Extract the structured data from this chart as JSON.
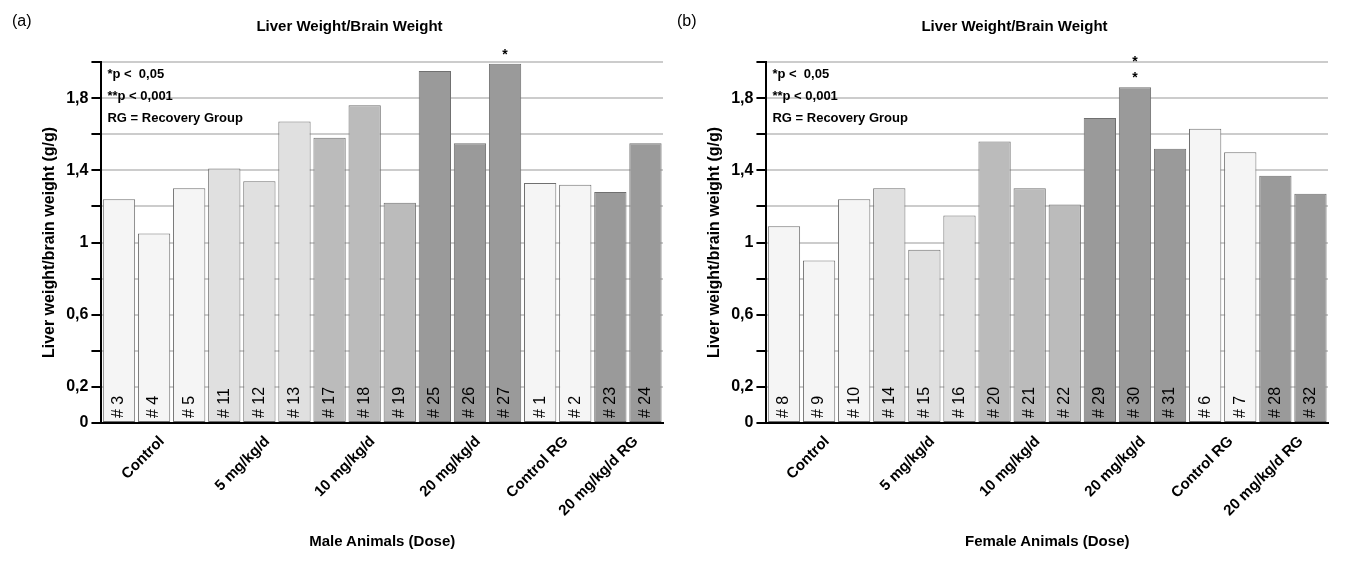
{
  "chart_data": [
    {
      "type": "bar",
      "title": "Liver Weight/Brain Weight",
      "xlabel": "Male Animals (Dose)",
      "ylabel": "Liver weight/brain weight (g/g)",
      "categories": [
        "# 3",
        "# 4",
        "# 5",
        "# 11",
        "# 12",
        "# 13",
        "# 17",
        "# 18",
        "# 19",
        "# 25",
        "# 26",
        "# 27",
        "# 1",
        "# 2",
        "# 23",
        "# 24"
      ],
      "values": [
        1.24,
        1.05,
        1.3,
        1.41,
        1.34,
        1.67,
        1.58,
        1.76,
        1.22,
        1.95,
        1.55,
        1.99,
        1.33,
        1.32,
        1.28,
        1.55
      ],
      "colors": [
        "#f5f5f5",
        "#f5f5f5",
        "#f5f5f5",
        "#e0e0e0",
        "#e0e0e0",
        "#e0e0e0",
        "#bbbbbb",
        "#bbbbbb",
        "#bbbbbb",
        "#9a9a9a",
        "#9a9a9a",
        "#9a9a9a",
        "#f5f5f5",
        "#f5f5f5",
        "#9a9a9a",
        "#9a9a9a"
      ],
      "ylim": [
        0,
        2
      ],
      "yticks": [
        {
          "value": 0,
          "label": "0"
        },
        {
          "value": 0.2,
          "label": "0,2"
        },
        {
          "value": 0.4,
          "label": null
        },
        {
          "value": 0.6,
          "label": "0,6"
        },
        {
          "value": 0.8,
          "label": null
        },
        {
          "value": 1,
          "label": "1"
        },
        {
          "value": 1.2,
          "label": null
        },
        {
          "value": 1.4,
          "label": "1,4"
        },
        {
          "value": 1.6,
          "label": null
        },
        {
          "value": 1.8,
          "label": "1,8"
        },
        {
          "value": 2,
          "label": null
        }
      ],
      "grid": "y",
      "annotations": [
        "(a)",
        "*p <  0,05",
        "**p < 0,001",
        "RG = Recovery Group",
        "Control",
        "5 mg/kg/d",
        "10 mg/kg/d",
        "20 mg/kg/d",
        "Control RG",
        "20 mg/kg/d RG",
        {
          "text": "*",
          "x": "# 27",
          "y": 1.99
        }
      ]
    },
    {
      "type": "bar",
      "title": "Liver Weight/Brain Weight",
      "xlabel": "Female Animals (Dose)",
      "ylabel": "Liver weight/brain weight (g/g)",
      "categories": [
        "# 8",
        "# 9",
        "# 10",
        "# 14",
        "# 15",
        "# 16",
        "# 20",
        "# 21",
        "# 22",
        "# 29",
        "# 30",
        "# 31",
        "# 6",
        "# 7",
        "# 28",
        "# 32"
      ],
      "values": [
        1.09,
        0.9,
        1.24,
        1.3,
        0.96,
        1.15,
        1.56,
        1.3,
        1.21,
        1.69,
        1.86,
        1.52,
        1.63,
        1.5,
        1.37,
        1.27
      ],
      "colors": [
        "#f5f5f5",
        "#f5f5f5",
        "#f5f5f5",
        "#e0e0e0",
        "#e0e0e0",
        "#e0e0e0",
        "#bbbbbb",
        "#bbbbbb",
        "#bbbbbb",
        "#9a9a9a",
        "#9a9a9a",
        "#9a9a9a",
        "#f5f5f5",
        "#f5f5f5",
        "#9a9a9a",
        "#9a9a9a"
      ],
      "ylim": [
        0,
        2
      ],
      "yticks": [
        {
          "value": 0,
          "label": "0"
        },
        {
          "value": 0.2,
          "label": "0,2"
        },
        {
          "value": 0.4,
          "label": null
        },
        {
          "value": 0.6,
          "label": "0,6"
        },
        {
          "value": 0.8,
          "label": null
        },
        {
          "value": 1,
          "label": "1"
        },
        {
          "value": 1.2,
          "label": null
        },
        {
          "value": 1.4,
          "label": "1,4"
        },
        {
          "value": 1.6,
          "label": null
        },
        {
          "value": 1.8,
          "label": "1,8"
        },
        {
          "value": 2,
          "label": null
        }
      ],
      "grid": "y",
      "annotations": [
        "(b)",
        "*p <  0,05",
        "**p < 0,001",
        "RG = Recovery Group",
        "Control",
        "5 mg/kg/d",
        "10 mg/kg/d",
        "20 mg/kg/d",
        "Control RG",
        "20 mg/kg/d RG",
        {
          "text": "*",
          "x": "# 30",
          "y": 1.86
        },
        {
          "text": "*",
          "x": "# 30",
          "y": 1.86
        }
      ]
    }
  ]
}
